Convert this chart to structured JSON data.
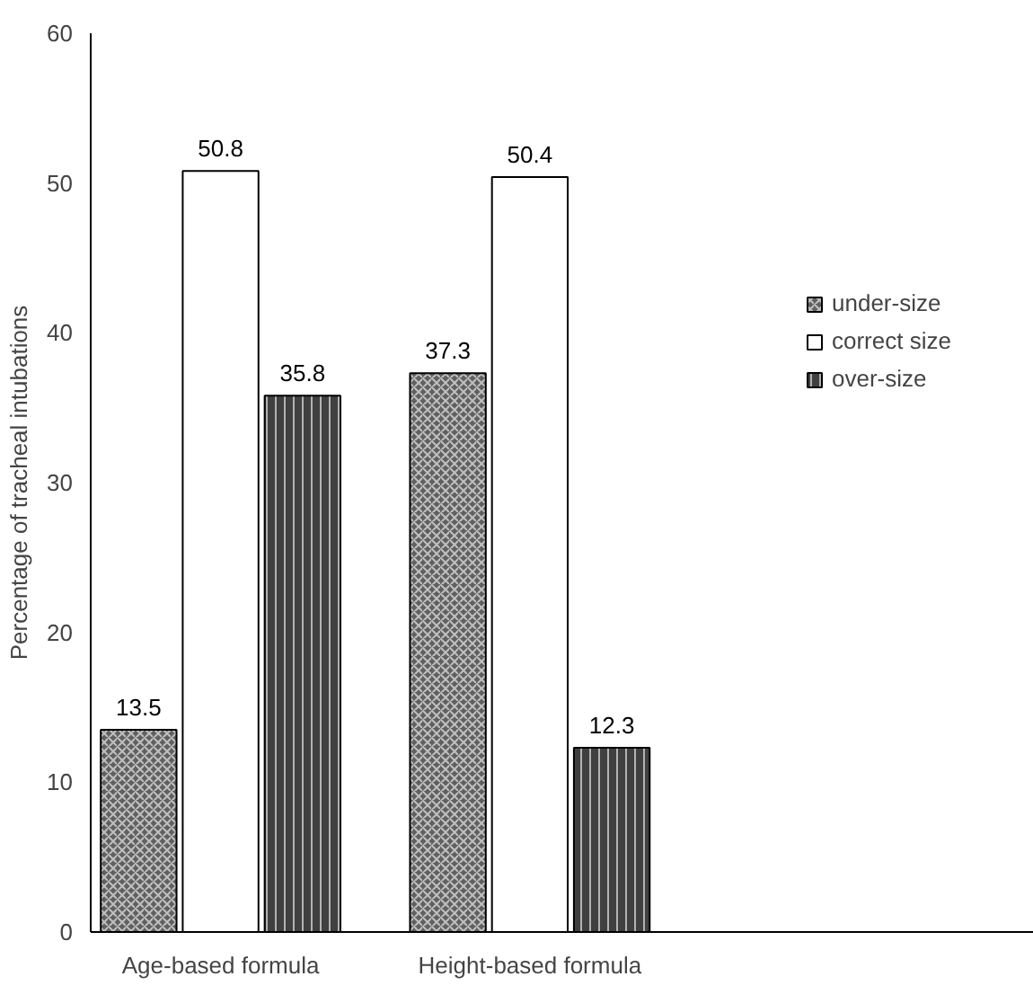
{
  "chart_data": {
    "type": "bar",
    "ylabel": "Percentage of tracheal intubations",
    "categories": [
      "Age-based formula",
      "Height-based formula"
    ],
    "series": [
      {
        "name": "under-size",
        "color": "#606060",
        "values": [
          13.5,
          37.3
        ]
      },
      {
        "name": "correct size",
        "color": "#ffffff",
        "values": [
          50.8,
          50.4
        ]
      },
      {
        "name": "over-size",
        "color": "#404040",
        "values": [
          35.8,
          12.3
        ]
      }
    ],
    "ylim": [
      0,
      60
    ],
    "yticks": [
      0,
      10,
      20,
      30,
      40,
      50,
      60
    ],
    "grid": false,
    "legend": "right",
    "data_labels": true
  }
}
